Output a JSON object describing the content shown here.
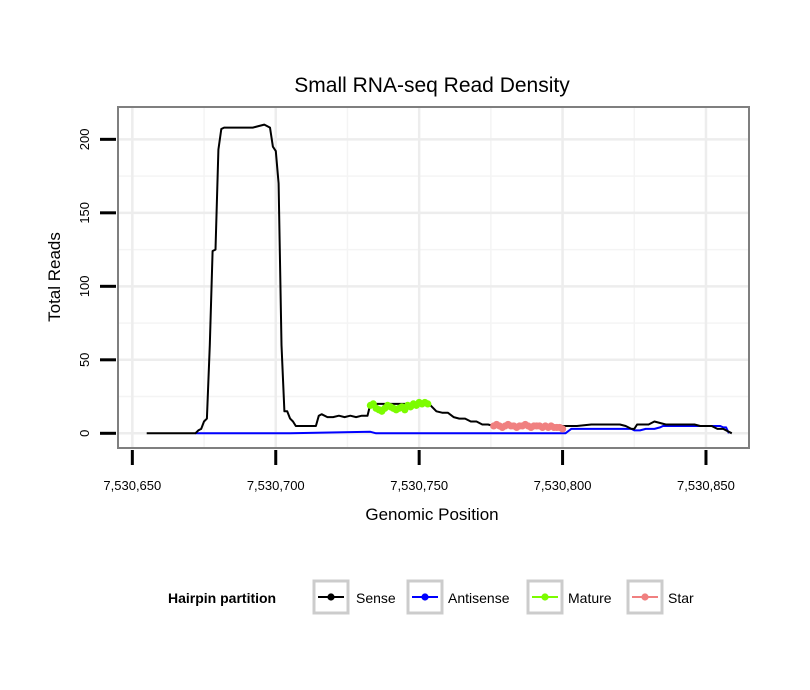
{
  "chart_data": {
    "type": "line",
    "title": "Small RNA-seq Read Density",
    "xlabel": "Genomic Position",
    "ylabel": "Total Reads",
    "xlim": [
      7530645,
      7530865
    ],
    "ylim": [
      -10,
      222
    ],
    "x_ticks": [
      7530650,
      7530700,
      7530750,
      7530800,
      7530850
    ],
    "x_tick_labels": [
      "7,530,650",
      "7,530,700",
      "7,530,750",
      "7,530,800",
      "7,530,850"
    ],
    "y_ticks": [
      0,
      50,
      100,
      150,
      200
    ],
    "y_tick_labels": [
      "0",
      "50",
      "100",
      "150",
      "200"
    ],
    "grid": true,
    "legend": {
      "title": "Hairpin partition",
      "position": "bottom",
      "entries": [
        "Sense",
        "Antisense",
        "Mature",
        "Star"
      ]
    },
    "series": [
      {
        "name": "Sense",
        "color": "#000000",
        "x": [
          7530655,
          7530672,
          7530673,
          7530674,
          7530675,
          7530676,
          7530677,
          7530678,
          7530679,
          7530680,
          7530681,
          7530682,
          7530683,
          7530684,
          7530685,
          7530686,
          7530688,
          7530690,
          7530692,
          7530694,
          7530696,
          7530698,
          7530699,
          7530700,
          7530701,
          7530702,
          7530703,
          7530704,
          7530705,
          7530706,
          7530707,
          7530708,
          7530709,
          7530710,
          7530712,
          7530714,
          7530715,
          7530716,
          7530718,
          7530720,
          7530722,
          7530724,
          7530726,
          7530728,
          7530730,
          7530732,
          7530733,
          7530740,
          7530745,
          7530750,
          7530754,
          7530756,
          7530758,
          7530760,
          7530762,
          7530764,
          7530766,
          7530768,
          7530770,
          7530772,
          7530774,
          7530776,
          7530780,
          7530785,
          7530790,
          7530795,
          7530800,
          7530805,
          7530810,
          7530812,
          7530815,
          7530818,
          7530820,
          7530822,
          7530824,
          7530825,
          7530826,
          7530828,
          7530830,
          7530832,
          7530834,
          7530836,
          7530838,
          7530840,
          7530842,
          7530844,
          7530846,
          7530848,
          7530850,
          7530852,
          7530854,
          7530856,
          7530858,
          7530859
        ],
        "values": [
          0,
          0,
          2,
          3,
          8,
          10,
          60,
          124,
          125,
          193,
          207,
          208,
          208,
          208,
          208,
          208,
          208,
          208,
          208,
          209,
          210,
          208,
          195,
          192,
          170,
          60,
          15,
          15,
          10,
          8,
          5,
          5,
          5,
          5,
          5,
          5,
          12,
          13,
          11,
          11,
          12,
          11,
          12,
          11,
          12,
          12,
          20,
          20,
          20,
          20,
          19,
          15,
          14,
          14,
          11,
          10,
          10,
          8,
          8,
          6,
          6,
          5,
          5,
          5,
          5,
          5,
          5,
          5,
          6,
          6,
          6,
          6,
          6,
          5,
          3,
          3,
          6,
          6,
          6,
          8,
          7,
          6,
          6,
          6,
          6,
          6,
          6,
          5,
          5,
          5,
          3,
          3,
          1,
          0
        ]
      },
      {
        "name": "Antisense",
        "color": "#0000ff",
        "x": [
          7530672,
          7530705,
          7530733,
          7530735,
          7530760,
          7530790,
          7530801,
          7530803,
          7530824,
          7530825,
          7530827,
          7530829,
          7530831,
          7530832,
          7530834,
          7530835,
          7530855,
          7530856,
          7530857,
          7530858
        ],
        "values": [
          0,
          0,
          1,
          0,
          0,
          0,
          0,
          3,
          3,
          2,
          2,
          3,
          3,
          3,
          4,
          5,
          5,
          4,
          4,
          0
        ]
      },
      {
        "name": "Mature",
        "color": "#7cfc00",
        "x": [
          7530733,
          7530734,
          7530735,
          7530736,
          7530737,
          7530738,
          7530739,
          7530740,
          7530741,
          7530742,
          7530743,
          7530744,
          7530745,
          7530746,
          7530747,
          7530748,
          7530749,
          7530750,
          7530751,
          7530752,
          7530753
        ],
        "values": [
          19,
          20,
          17,
          16,
          15,
          17,
          19,
          18,
          17,
          16,
          17,
          18,
          16,
          19,
          18,
          20,
          19,
          21,
          20,
          21,
          20
        ]
      },
      {
        "name": "Star",
        "color": "#f08080",
        "x": [
          7530776,
          7530777,
          7530778,
          7530779,
          7530780,
          7530781,
          7530782,
          7530783,
          7530784,
          7530785,
          7530786,
          7530787,
          7530788,
          7530789,
          7530790,
          7530791,
          7530792,
          7530793,
          7530794,
          7530795,
          7530796,
          7530797,
          7530798,
          7530799,
          7530800
        ],
        "values": [
          5,
          6,
          5,
          4,
          5,
          6,
          5,
          5,
          4,
          5,
          5,
          6,
          5,
          4,
          5,
          5,
          5,
          4,
          5,
          4,
          5,
          4,
          4,
          4,
          3
        ]
      }
    ]
  }
}
